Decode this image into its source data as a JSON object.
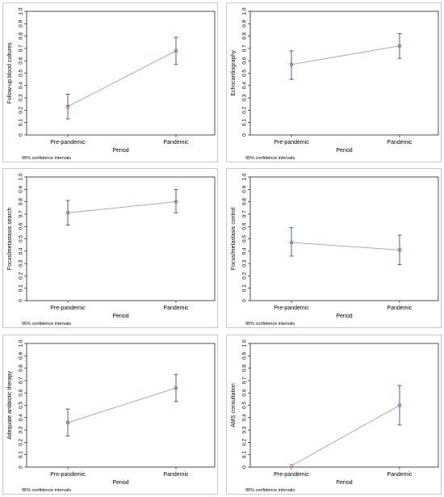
{
  "chart_data": [
    {
      "type": "scatter",
      "xlabel": "Period",
      "ylabel": "Follow-up blood cultures",
      "categories": [
        "Pre-pandemic",
        "Pandemic"
      ],
      "ylim": [
        0,
        1.0
      ],
      "yticks": [
        "0",
        "0.1",
        "0.2",
        "0.3",
        "0.4",
        "0.5",
        "0.6",
        "0.7",
        "0.8",
        "0.9",
        "1.0"
      ],
      "series": [
        {
          "values": [
            0.23,
            0.68
          ],
          "ci_low": [
            0.13,
            0.57
          ],
          "ci_high": [
            0.33,
            0.79
          ]
        }
      ],
      "note": "95% confidence intervals",
      "grid": false
    },
    {
      "type": "scatter",
      "xlabel": "Period",
      "ylabel": "Echocardiography",
      "categories": [
        "Pre-pandemic",
        "Pandemic"
      ],
      "ylim": [
        0,
        1.0
      ],
      "yticks": [
        "0",
        "0.1",
        "0.2",
        "0.3",
        "0.4",
        "0.5",
        "0.6",
        "0.7",
        "0.8",
        "0.9",
        "1.0"
      ],
      "series": [
        {
          "values": [
            0.57,
            0.72
          ],
          "ci_low": [
            0.45,
            0.62
          ],
          "ci_high": [
            0.68,
            0.82
          ]
        }
      ],
      "note": "95% confidence intervals",
      "grid": false
    },
    {
      "type": "scatter",
      "xlabel": "Period",
      "ylabel": "Focus/metastasis search",
      "categories": [
        "Pre-pandemic",
        "Pandemic"
      ],
      "ylim": [
        0,
        1.0
      ],
      "yticks": [
        "0",
        "0.1",
        "0.2",
        "0.3",
        "0.4",
        "0.5",
        "0.6",
        "0.7",
        "0.8",
        "0.9",
        "1.0"
      ],
      "series": [
        {
          "values": [
            0.71,
            0.8
          ],
          "ci_low": [
            0.61,
            0.71
          ],
          "ci_high": [
            0.81,
            0.9
          ]
        }
      ],
      "note": "95% confidence intervals",
      "grid": false
    },
    {
      "type": "scatter",
      "xlabel": "Period",
      "ylabel": "Focus/metastasis control",
      "categories": [
        "Pre-pandemic",
        "Pandemic"
      ],
      "ylim": [
        0,
        1.0
      ],
      "yticks": [
        "0",
        "0.1",
        "0.2",
        "0.3",
        "0.4",
        "0.5",
        "0.6",
        "0.7",
        "0.8",
        "0.9",
        "1.0"
      ],
      "series": [
        {
          "values": [
            0.47,
            0.41
          ],
          "ci_low": [
            0.36,
            0.29
          ],
          "ci_high": [
            0.59,
            0.53
          ]
        }
      ],
      "note": "95% confidence intervals",
      "grid": false
    },
    {
      "type": "scatter",
      "xlabel": "Period",
      "ylabel": "Adequate antibiotic therapy",
      "categories": [
        "Pre-pandemic",
        "Pandemic"
      ],
      "ylim": [
        0,
        1.0
      ],
      "yticks": [
        "0",
        "0.1",
        "0.2",
        "0.3",
        "0.4",
        "0.5",
        "0.6",
        "0.7",
        "0.8",
        "0.9",
        "1.0"
      ],
      "series": [
        {
          "values": [
            0.36,
            0.64
          ],
          "ci_low": [
            0.25,
            0.53
          ],
          "ci_high": [
            0.47,
            0.75
          ]
        }
      ],
      "note": "95% confidence intervals",
      "grid": false
    },
    {
      "type": "scatter",
      "xlabel": "Period",
      "ylabel": "AMS consultation",
      "categories": [
        "Pre-pandemic",
        "Pandemic"
      ],
      "ylim": [
        0,
        1.0
      ],
      "yticks": [
        "0",
        "0.1",
        "0.2",
        "0.3",
        "0.4",
        "0.5",
        "0.6",
        "0.7",
        "0.8",
        "0.9",
        "1.0"
      ],
      "series": [
        {
          "values": [
            0.01,
            0.5
          ],
          "ci_low": [
            null,
            0.34
          ],
          "ci_high": [
            null,
            0.66
          ]
        }
      ],
      "note": "95% confidence intervals",
      "grid": false
    }
  ],
  "colors": {
    "line": "#8fa3d6",
    "marker": "#c0485a",
    "error_bar": "#1f3b8a",
    "axis": "#000000",
    "panel_border": "#c8c8c8"
  }
}
